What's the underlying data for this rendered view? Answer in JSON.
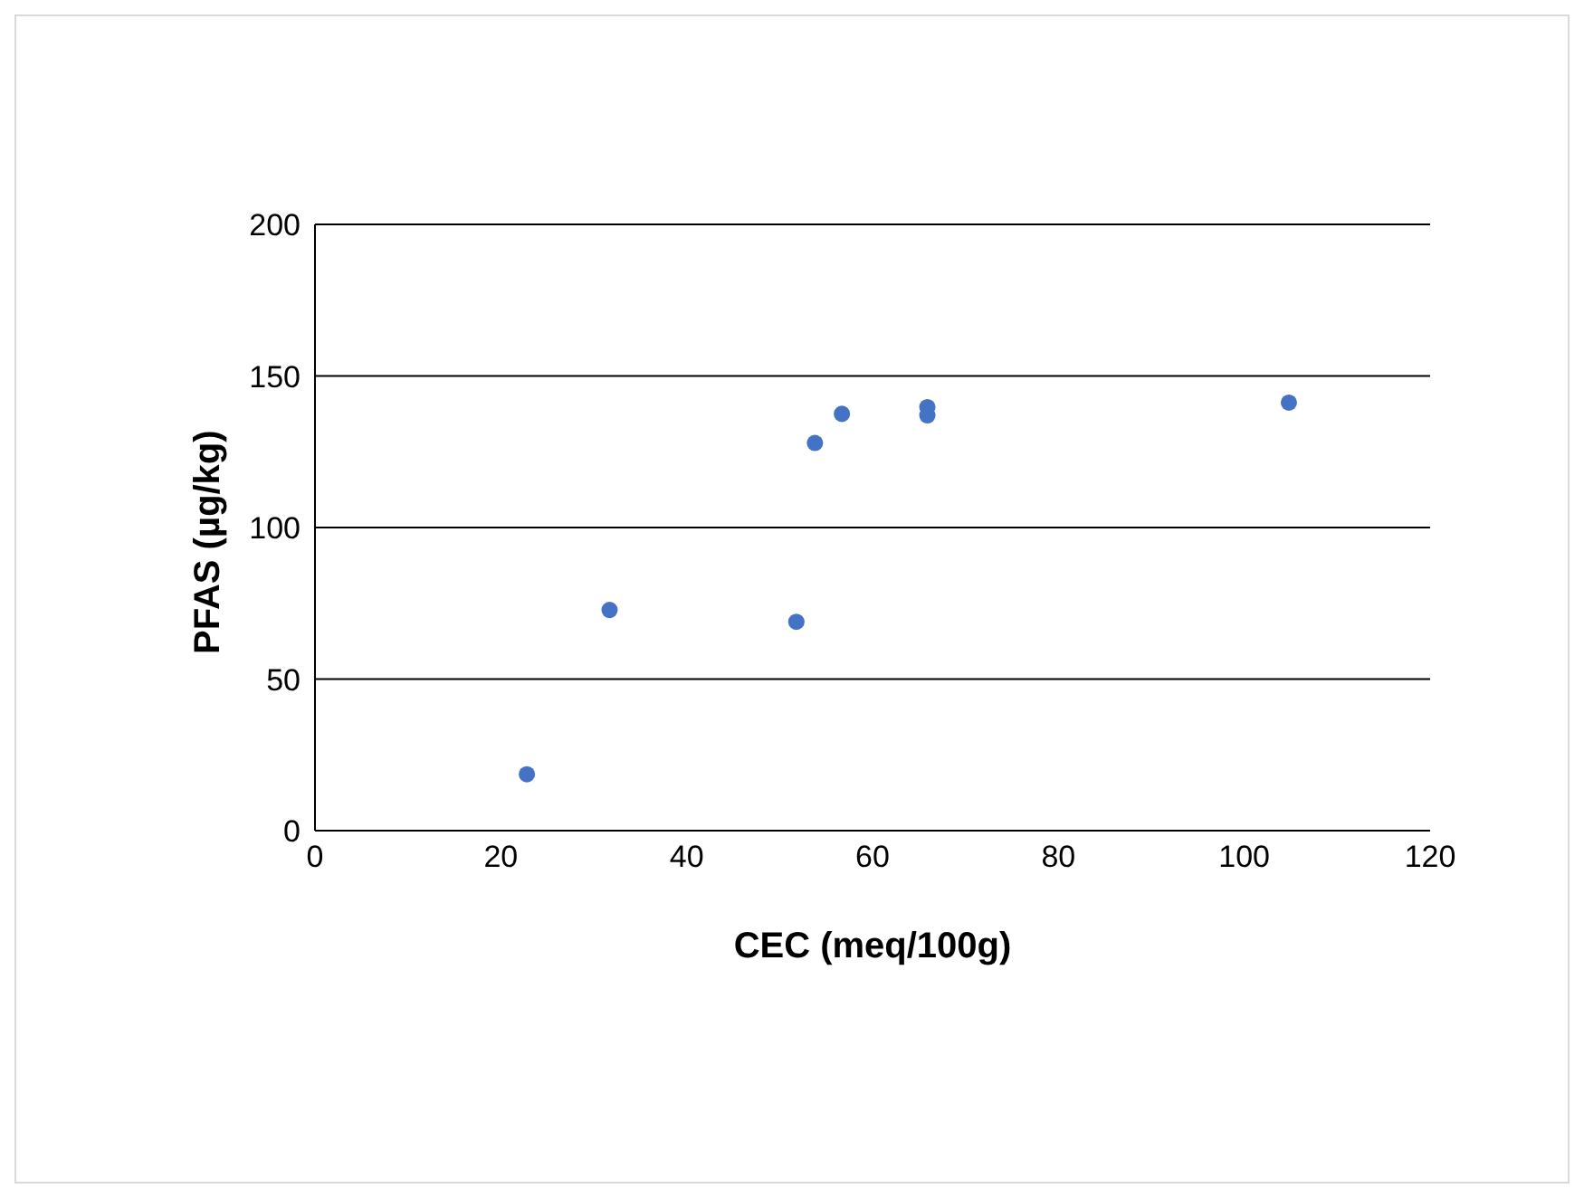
{
  "chart_data": {
    "type": "scatter",
    "xlabel": "CEC (meq/100g)",
    "ylabel": "PFAS (µg/kg)",
    "x": [
      22.8,
      31.7,
      51.8,
      53.8,
      56.7,
      65.9,
      65.9,
      104.8
    ],
    "values": [
      18.6,
      72.8,
      68.9,
      127.9,
      137.5,
      139.7,
      137.0,
      141.2
    ],
    "color": "#4472c4",
    "marker": "circle",
    "xlim": [
      0,
      120
    ],
    "xticks": [
      0,
      20,
      40,
      60,
      80,
      100,
      120
    ],
    "ylim": [
      0,
      200
    ],
    "yticks": [
      0,
      50,
      100,
      150,
      200
    ],
    "grid": "y",
    "legend": false
  }
}
